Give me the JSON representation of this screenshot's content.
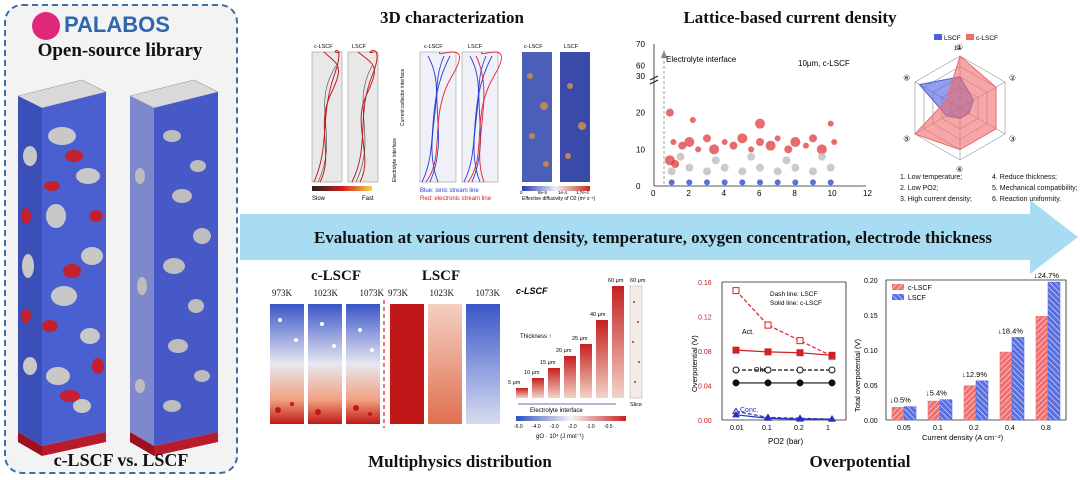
{
  "left_panel": {
    "logo_text": "PALABOS",
    "subtitle": "Open-source library",
    "caption": "c-LSCF vs. LSCF"
  },
  "banner": {
    "text": "Evaluation at various current density, temperature, oxygen concentration, electrode thickness"
  },
  "characterization": {
    "title": "3D characterization",
    "labels": [
      "c-LSCF",
      "LSCF",
      "c-LSCF",
      "LSCF",
      "c-LSCF",
      "LSCF"
    ],
    "side_labels": [
      "Current collector interface",
      "Electrolyte interface"
    ],
    "legend_slow": "Slow",
    "legend_fast": "Fast",
    "blue_legend": "Blue: ionic stream line",
    "red_legend": "Red: electronic stream line",
    "diffusivity_ticks": [
      "0",
      "8e-5",
      "1e-4",
      "1.7e-4"
    ],
    "diffusivity_label": "Effective diffusivity of O2 (m² s⁻¹)"
  },
  "lattice": {
    "title": "Lattice-based current density",
    "annotation": "Electrolyte interface",
    "note": "10μm, c-LSCF"
  },
  "radar": {
    "legend": [
      "LSCF",
      "c-LSCF"
    ],
    "axis_labels": [
      "①",
      "②",
      "③",
      "④",
      "⑤",
      "⑥"
    ],
    "top_value": "10",
    "notes": [
      "1. Low temperature;",
      "4. Reduce thickness;",
      "2. Low PO2;",
      "5. Mechanical compatibility;",
      "3. High current density;",
      "6. Reaction uniformity."
    ]
  },
  "multiphysics": {
    "title": "Multiphysics distribution",
    "c_lscf_title": "c-LSCF",
    "lscf_title": "LSCF",
    "temps_c": [
      "973K",
      "1023K",
      "1073K"
    ],
    "temps_l": [
      "973K",
      "1023K",
      "1073K"
    ],
    "thickness_title": "c-LSCF",
    "thickness_labels": [
      "5 μm",
      "10 μm",
      "15 μm",
      "20 μm",
      "25 μm",
      "40 μm",
      "60 μm"
    ],
    "thickness_arrow": "Thickness ↑",
    "electrolyte_label": "Electrolyte interface",
    "slice_label": "Slice",
    "top_label": "60 μm",
    "axis_ticks": [
      "-5.0",
      "-4.0",
      "-3.0",
      "-2.0",
      "-1.0",
      "-0.5"
    ],
    "axis_label": "gO · 10⁴ (J mol⁻¹)"
  },
  "overpotential": {
    "title": "Overpotential",
    "legend_dash": "Dash line: LSCF",
    "legend_solid": "Solid line: c-LSCF",
    "ann_act": "Act.",
    "ann_ohm": "Ohm.",
    "ann_conc": "Conc."
  },
  "chart_data": [
    {
      "type": "scatter",
      "title": "Lattice-based current density",
      "xlabel": "",
      "ylabel": "",
      "xlim": [
        0,
        12
      ],
      "ylim": [
        0,
        70
      ],
      "y_break": [
        30,
        55
      ],
      "xticks": [
        0,
        2,
        4,
        6,
        8,
        10,
        12
      ],
      "yticks": [
        0,
        10,
        20,
        30,
        60,
        70
      ],
      "series": [
        {
          "name": "red",
          "color": "#e03b3b",
          "points": [
            [
              1.1,
              12
            ],
            [
              1.6,
              11
            ],
            [
              2.0,
              12
            ],
            [
              2.5,
              10
            ],
            [
              3.0,
              13
            ],
            [
              3.4,
              10
            ],
            [
              4.0,
              12
            ],
            [
              4.5,
              11
            ],
            [
              5.0,
              13
            ],
            [
              5.5,
              10
            ],
            [
              6.0,
              12
            ],
            [
              6.6,
              11
            ],
            [
              7.0,
              13
            ],
            [
              7.6,
              10
            ],
            [
              8.0,
              12
            ],
            [
              8.6,
              11
            ],
            [
              9.0,
              13
            ],
            [
              9.5,
              10
            ],
            [
              10.2,
              12
            ],
            [
              0.9,
              20
            ],
            [
              0.9,
              7
            ],
            [
              2.2,
              18
            ],
            [
              1.2,
              6
            ],
            [
              6.0,
              17
            ],
            [
              10.0,
              17
            ]
          ]
        },
        {
          "name": "gray",
          "color": "#b9b9b9",
          "points": [
            [
              1.0,
              4
            ],
            [
              2.0,
              5
            ],
            [
              3.0,
              4
            ],
            [
              4.0,
              5
            ],
            [
              5.0,
              4
            ],
            [
              6.0,
              5
            ],
            [
              7.0,
              4
            ],
            [
              8.0,
              5
            ],
            [
              9.0,
              4
            ],
            [
              10.0,
              5
            ],
            [
              1.5,
              8
            ],
            [
              3.5,
              7
            ],
            [
              5.5,
              8
            ],
            [
              7.5,
              7
            ],
            [
              9.5,
              8
            ]
          ]
        },
        {
          "name": "blue",
          "color": "#2440c8",
          "points": [
            [
              1.0,
              1
            ],
            [
              2.0,
              1
            ],
            [
              3.0,
              1
            ],
            [
              4.0,
              1
            ],
            [
              5.0,
              1
            ],
            [
              6.0,
              1
            ],
            [
              7.0,
              1
            ],
            [
              8.0,
              1
            ],
            [
              9.0,
              1
            ],
            [
              10.0,
              1
            ]
          ]
        }
      ]
    },
    {
      "type": "radar",
      "axes": [
        "1",
        "2",
        "3",
        "4",
        "5",
        "6"
      ],
      "rmax": 10,
      "series": [
        {
          "name": "LSCF",
          "color": "#4b5ee0",
          "values": [
            6,
            3,
            2,
            2,
            3,
            9
          ]
        },
        {
          "name": "c-LSCF",
          "color": "#f06a6a",
          "values": [
            10,
            8,
            8,
            8,
            10,
            3
          ]
        }
      ]
    },
    {
      "type": "line",
      "title": "Overpotential",
      "xlabel": "PO2 (bar)",
      "ylabel": "Overpotential (V)",
      "categories": [
        "0.01",
        "0.1",
        "0.2",
        "1"
      ],
      "ylim": [
        0,
        0.16
      ],
      "yticks": [
        "0.00",
        "0.04",
        "0.08",
        "0.12",
        "0.16"
      ],
      "series": [
        {
          "name": "Act. LSCF",
          "color": "#d42020",
          "dash": true,
          "marker": "square-open",
          "values": [
            0.15,
            0.11,
            0.092,
            0.074
          ]
        },
        {
          "name": "Act. c-LSCF",
          "color": "#d42020",
          "dash": false,
          "marker": "square",
          "values": [
            0.081,
            0.079,
            0.078,
            0.075
          ]
        },
        {
          "name": "Ohm. LSCF",
          "color": "#111111",
          "dash": true,
          "marker": "circle-open",
          "values": [
            0.058,
            0.058,
            0.058,
            0.058
          ]
        },
        {
          "name": "Ohm. c-LSCF",
          "color": "#111111",
          "dash": false,
          "marker": "circle",
          "values": [
            0.043,
            0.043,
            0.043,
            0.043
          ]
        },
        {
          "name": "Conc. LSCF",
          "color": "#2230c0",
          "dash": true,
          "marker": "triangle-open",
          "values": [
            0.01,
            0.003,
            0.002,
            0.001
          ]
        },
        {
          "name": "Conc. c-LSCF",
          "color": "#2230c0",
          "dash": false,
          "marker": "triangle",
          "values": [
            0.006,
            0.002,
            0.001,
            0.001
          ]
        }
      ]
    },
    {
      "type": "bar",
      "title": "",
      "xlabel": "Current density (A cm⁻²)",
      "ylabel": "Total overpotential (V)",
      "categories": [
        "0.05",
        "0.1",
        "0.2",
        "0.4",
        "0.8"
      ],
      "ylim": [
        0,
        0.2
      ],
      "yticks": [
        "0.00",
        "0.05",
        "0.10",
        "0.15",
        "0.20"
      ],
      "series": [
        {
          "name": "c-LSCF",
          "color": "#f07070",
          "values": [
            0.018,
            0.027,
            0.049,
            0.097,
            0.148
          ]
        },
        {
          "name": "LSCF",
          "color": "#5a6fe0",
          "values": [
            0.019,
            0.029,
            0.056,
            0.118,
            0.197
          ]
        }
      ],
      "annotations": [
        "↓0.5%",
        "↓5.4%",
        "↓12.9%",
        "↓18.4%",
        "↓24.7%"
      ]
    }
  ]
}
